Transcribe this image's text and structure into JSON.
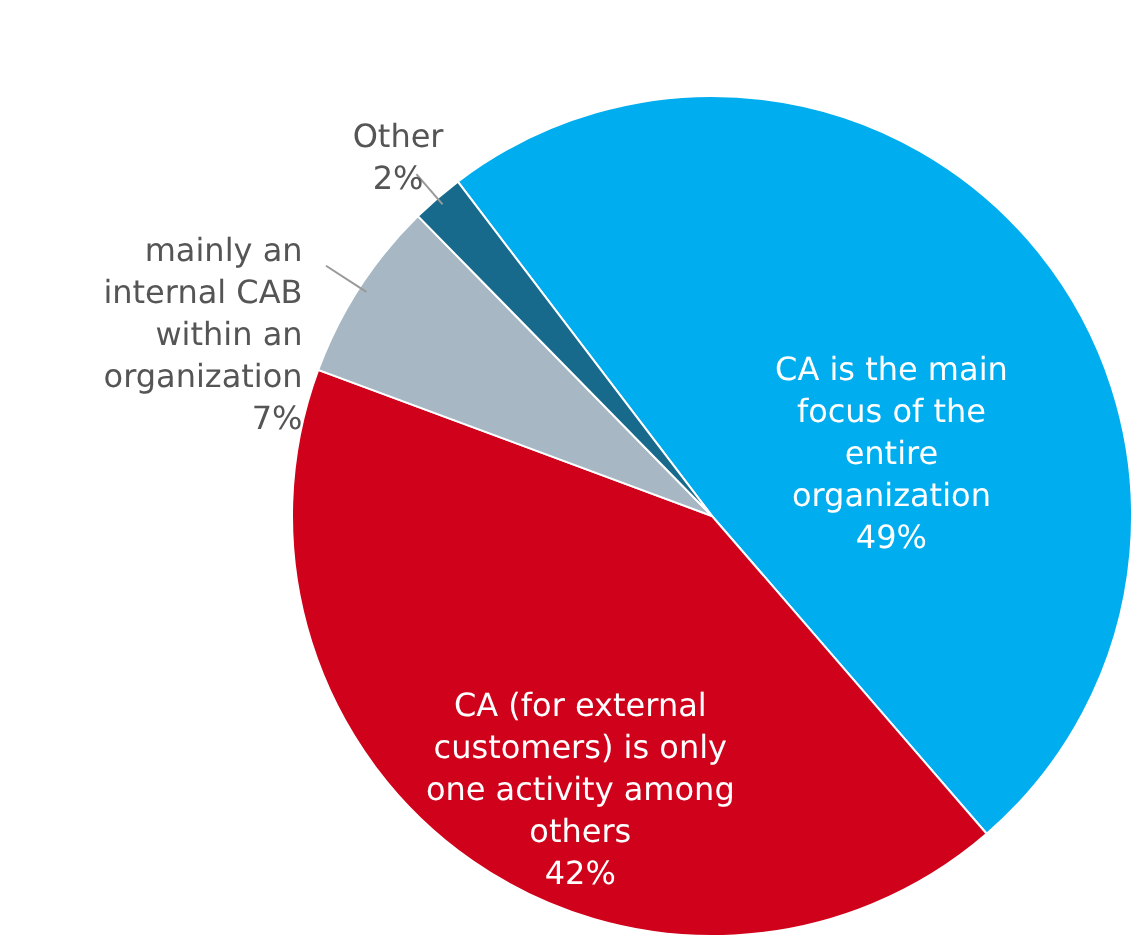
{
  "chart_data": {
    "type": "pie",
    "categories": [
      "CA is the main focus of the entire organization",
      "CA (for external customers) is only one activity among others",
      "mainly an internal CAB within an organization",
      "Other"
    ],
    "values": [
      49,
      42,
      7,
      2
    ],
    "colors": [
      "#00adef",
      "#d0021b",
      "#a7b8c4",
      "#176a8c"
    ],
    "value_labels": [
      "49%",
      "42%",
      "7%",
      "2%"
    ]
  }
}
